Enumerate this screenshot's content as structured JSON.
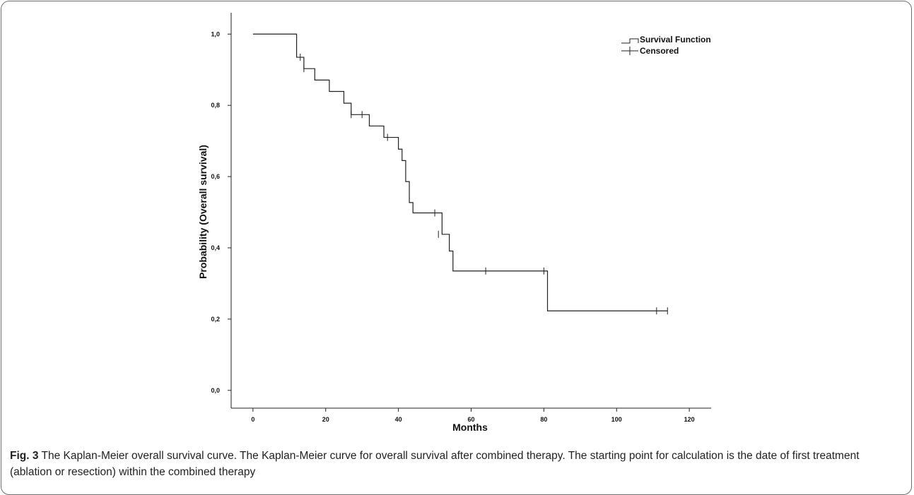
{
  "chart_data": {
    "type": "line",
    "xlabel": "Months",
    "ylabel": "Probability (Overall survival)",
    "xlim": [
      -6,
      126
    ],
    "ylim": [
      -0.05,
      1.06
    ],
    "x_ticks": [
      0,
      20,
      40,
      60,
      80,
      100,
      120
    ],
    "x_tick_labels": [
      "0",
      "20",
      "40",
      "60",
      "80",
      "100",
      "120"
    ],
    "y_ticks": [
      0.0,
      0.2,
      0.4,
      0.6,
      0.8,
      1.0
    ],
    "y_tick_labels": [
      "0,0",
      "0,2",
      "0,4",
      "0,6",
      "0,8",
      "1,0"
    ],
    "legend": {
      "position": "top-right",
      "entries": [
        "Survival Function",
        "Censored"
      ]
    },
    "series": [
      {
        "name": "Survival Function",
        "step_points": [
          [
            0,
            1.0
          ],
          [
            12,
            0.935
          ],
          [
            14,
            0.903
          ],
          [
            17,
            0.871
          ],
          [
            21,
            0.839
          ],
          [
            25,
            0.806
          ],
          [
            27,
            0.774
          ],
          [
            32,
            0.742
          ],
          [
            36,
            0.71
          ],
          [
            40,
            0.677
          ],
          [
            41,
            0.645
          ],
          [
            42,
            0.586
          ],
          [
            43,
            0.527
          ],
          [
            44,
            0.498
          ],
          [
            52,
            0.438
          ],
          [
            54,
            0.391
          ],
          [
            55,
            0.335
          ],
          [
            81,
            0.223
          ]
        ],
        "end_x": 114
      },
      {
        "name": "Censored",
        "points": [
          [
            13,
            0.935
          ],
          [
            14,
            0.903
          ],
          [
            27,
            0.774
          ],
          [
            30,
            0.774
          ],
          [
            37,
            0.71
          ],
          [
            50,
            0.498
          ],
          [
            51,
            0.438
          ],
          [
            64,
            0.335
          ],
          [
            80,
            0.335
          ],
          [
            111,
            0.223
          ],
          [
            114,
            0.223
          ]
        ]
      }
    ]
  },
  "caption": {
    "label": "Fig. 3",
    "text": " The Kaplan-Meier overall survival curve. The Kaplan-Meier curve for overall survival after combined therapy. The starting point for calculation is the date of first treatment (ablation or resection) within the combined therapy"
  }
}
